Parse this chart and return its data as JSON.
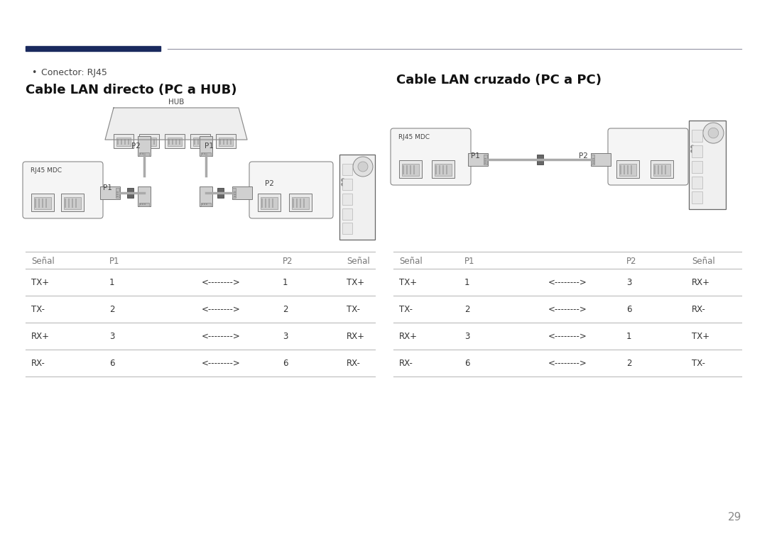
{
  "bg_color": "#ffffff",
  "text_color": "#333333",
  "line_color": "#bbbbbb",
  "dark_line_color": "#1a2a5e",
  "page_number": "29",
  "bullet_text": "Conector: RJ45",
  "title_left": "Cable LAN directo (PC a HUB)",
  "title_right": "Cable LAN cruzado (PC a PC)",
  "table_left": {
    "headers": [
      "Señal",
      "P1",
      "",
      "P2",
      "Señal"
    ],
    "rows": [
      [
        "TX+",
        "1",
        "<-------->",
        "1",
        "TX+"
      ],
      [
        "TX-",
        "2",
        "<-------->",
        "2",
        "TX-"
      ],
      [
        "RX+",
        "3",
        "<-------->",
        "3",
        "RX+"
      ],
      [
        "RX-",
        "6",
        "<-------->",
        "6",
        "RX-"
      ]
    ]
  },
  "table_right": {
    "headers": [
      "Señal",
      "P1",
      "",
      "P2",
      "Señal"
    ],
    "rows": [
      [
        "TX+",
        "1",
        "<-------->",
        "3",
        "RX+"
      ],
      [
        "TX-",
        "2",
        "<-------->",
        "6",
        "RX-"
      ],
      [
        "RX+",
        "3",
        "<-------->",
        "1",
        "TX+"
      ],
      [
        "RX-",
        "6",
        "<-------->",
        "2",
        "TX-"
      ]
    ]
  }
}
